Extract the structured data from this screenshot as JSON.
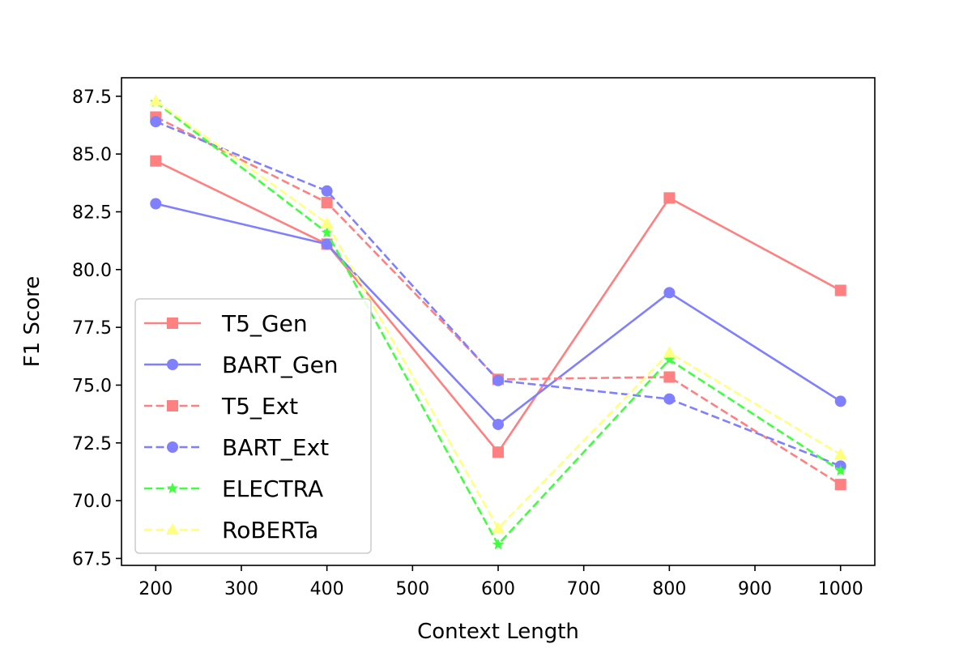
{
  "chart_data": {
    "type": "line",
    "title": "",
    "xlabel": "Context Length",
    "ylabel": "F1 Score",
    "x": [
      200,
      400,
      600,
      800,
      1000
    ],
    "xlim": [
      160,
      1040
    ],
    "ylim": [
      67.2,
      88.3
    ],
    "xticks": [
      200,
      300,
      400,
      500,
      600,
      700,
      800,
      900,
      1000
    ],
    "yticks": [
      "67.5",
      "70.0",
      "72.5",
      "75.0",
      "77.5",
      "80.0",
      "82.5",
      "85.0",
      "87.5"
    ],
    "grid": false,
    "legend_position": "lower-left",
    "series": [
      {
        "name": "T5_Gen",
        "values": [
          84.7,
          81.1,
          72.1,
          83.1,
          79.1
        ],
        "color": "#ff8080",
        "dash": "solid",
        "marker": "square"
      },
      {
        "name": "BART_Gen",
        "values": [
          82.85,
          81.1,
          73.3,
          79.0,
          74.3
        ],
        "color": "#8080ff",
        "dash": "solid",
        "marker": "circle"
      },
      {
        "name": "T5_Ext",
        "values": [
          86.6,
          82.9,
          75.25,
          75.35,
          70.7
        ],
        "color": "#ff8080",
        "dash": "dashed",
        "marker": "square"
      },
      {
        "name": "BART_Ext",
        "values": [
          86.4,
          83.4,
          75.2,
          74.4,
          71.5
        ],
        "color": "#8080ff",
        "dash": "dashed",
        "marker": "circle"
      },
      {
        "name": "ELECTRA",
        "values": [
          87.25,
          81.6,
          68.1,
          76.1,
          71.3
        ],
        "color": "#40ff40",
        "dash": "dashed",
        "marker": "star"
      },
      {
        "name": "RoBERTa",
        "values": [
          87.3,
          82.0,
          68.8,
          76.4,
          72.0
        ],
        "color": "#ffff80",
        "dash": "dashed",
        "marker": "triangle"
      }
    ]
  }
}
